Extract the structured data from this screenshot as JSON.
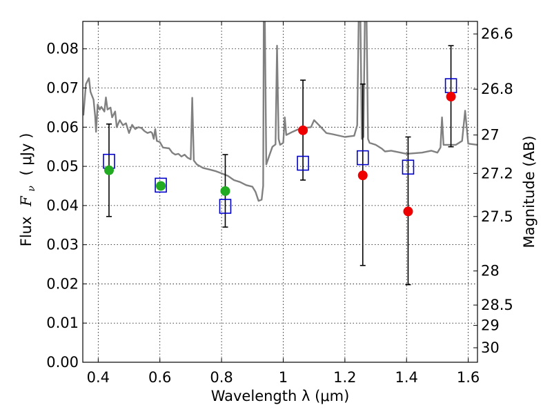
{
  "chart_data": {
    "type": "scatter",
    "title": "",
    "xlabel": "Wavelength  λ (μm)",
    "ylabel": "Flux  F_ν  ( μJy )",
    "ylabel_parts": {
      "prefix": "Flux",
      "symbol": "F",
      "subscript": "ν",
      "unit": "( μJy )"
    },
    "y2label": "Magnitude (AB)",
    "xlim": [
      0.35,
      1.63
    ],
    "ylim": [
      0.0,
      0.087
    ],
    "grid": true,
    "xticks": [
      {
        "value": 0.4,
        "label": "0.4"
      },
      {
        "value": 0.6,
        "label": "0.6"
      },
      {
        "value": 0.8,
        "label": "0.8"
      },
      {
        "value": 1.0,
        "label": "1"
      },
      {
        "value": 1.2,
        "label": "1.2"
      },
      {
        "value": 1.4,
        "label": "1.4"
      },
      {
        "value": 1.6,
        "label": "1.6"
      }
    ],
    "yticks": [
      {
        "value": 0.0,
        "label": "0.00"
      },
      {
        "value": 0.01,
        "label": "0.01"
      },
      {
        "value": 0.02,
        "label": "0.02"
      },
      {
        "value": 0.03,
        "label": "0.03"
      },
      {
        "value": 0.04,
        "label": "0.04"
      },
      {
        "value": 0.05,
        "label": "0.05"
      },
      {
        "value": 0.06,
        "label": "0.06"
      },
      {
        "value": 0.07,
        "label": "0.07"
      },
      {
        "value": 0.08,
        "label": "0.08"
      }
    ],
    "y2ticks": [
      {
        "flux": 0.0838,
        "label": "26.6"
      },
      {
        "flux": 0.0697,
        "label": "26.8"
      },
      {
        "flux": 0.058,
        "label": "27"
      },
      {
        "flux": 0.0482,
        "label": "27.2"
      },
      {
        "flux": 0.0372,
        "label": "27.5"
      },
      {
        "flux": 0.0233,
        "label": "28"
      },
      {
        "flux": 0.0146,
        "label": "28.5"
      },
      {
        "flux": 0.0094,
        "label": "29"
      },
      {
        "flux": 0.0037,
        "label": "30"
      }
    ],
    "series": [
      {
        "kind": "line",
        "color": "#808080",
        "points": [
          [
            0.352,
            0.063
          ],
          [
            0.36,
            0.071
          ],
          [
            0.37,
            0.0725
          ],
          [
            0.375,
            0.069
          ],
          [
            0.385,
            0.067
          ],
          [
            0.39,
            0.0628
          ],
          [
            0.393,
            0.0588
          ],
          [
            0.398,
            0.0658
          ],
          [
            0.405,
            0.0645
          ],
          [
            0.41,
            0.0652
          ],
          [
            0.42,
            0.064
          ],
          [
            0.425,
            0.0676
          ],
          [
            0.43,
            0.0645
          ],
          [
            0.44,
            0.065
          ],
          [
            0.445,
            0.0625
          ],
          [
            0.455,
            0.064
          ],
          [
            0.46,
            0.06
          ],
          [
            0.47,
            0.0618
          ],
          [
            0.48,
            0.0605
          ],
          [
            0.49,
            0.061
          ],
          [
            0.5,
            0.0585
          ],
          [
            0.51,
            0.0606
          ],
          [
            0.52,
            0.0595
          ],
          [
            0.53,
            0.06
          ],
          [
            0.54,
            0.0598
          ],
          [
            0.55,
            0.059
          ],
          [
            0.56,
            0.0585
          ],
          [
            0.57,
            0.0588
          ],
          [
            0.575,
            0.0585
          ],
          [
            0.58,
            0.057
          ],
          [
            0.585,
            0.0595
          ],
          [
            0.59,
            0.0565
          ],
          [
            0.6,
            0.0562
          ],
          [
            0.61,
            0.0548
          ],
          [
            0.63,
            0.0546
          ],
          [
            0.64,
            0.0535
          ],
          [
            0.65,
            0.053
          ],
          [
            0.66,
            0.0532
          ],
          [
            0.67,
            0.0525
          ],
          [
            0.68,
            0.053
          ],
          [
            0.69,
            0.0522
          ],
          [
            0.7,
            0.0518
          ],
          [
            0.705,
            0.0675
          ],
          [
            0.71,
            0.0515
          ],
          [
            0.72,
            0.0505
          ],
          [
            0.74,
            0.0496
          ],
          [
            0.76,
            0.0492
          ],
          [
            0.78,
            0.0488
          ],
          [
            0.8,
            0.0482
          ],
          [
            0.82,
            0.0476
          ],
          [
            0.84,
            0.0465
          ],
          [
            0.86,
            0.046
          ],
          [
            0.88,
            0.0452
          ],
          [
            0.9,
            0.0448
          ],
          [
            0.91,
            0.0435
          ],
          [
            0.92,
            0.0412
          ],
          [
            0.93,
            0.0415
          ],
          [
            0.935,
            0.045
          ],
          [
            0.937,
            0.09
          ],
          [
            0.94,
            0.09
          ],
          [
            0.945,
            0.0505
          ],
          [
            0.955,
            0.0528
          ],
          [
            0.965,
            0.055
          ],
          [
            0.975,
            0.0556
          ],
          [
            0.98,
            0.0808
          ],
          [
            0.985,
            0.057
          ],
          [
            0.99,
            0.0555
          ],
          [
            1.0,
            0.056
          ],
          [
            1.005,
            0.0625
          ],
          [
            1.01,
            0.058
          ],
          [
            1.03,
            0.0588
          ],
          [
            1.05,
            0.0595
          ],
          [
            1.07,
            0.0598
          ],
          [
            1.09,
            0.06
          ],
          [
            1.1,
            0.0618
          ],
          [
            1.12,
            0.0602
          ],
          [
            1.14,
            0.0585
          ],
          [
            1.16,
            0.0582
          ],
          [
            1.2,
            0.0575
          ],
          [
            1.23,
            0.0578
          ],
          [
            1.24,
            0.0605
          ],
          [
            1.245,
            0.09
          ],
          [
            1.25,
            0.09
          ],
          [
            1.255,
            0.057
          ],
          [
            1.26,
            0.0575
          ],
          [
            1.265,
            0.09
          ],
          [
            1.27,
            0.09
          ],
          [
            1.275,
            0.057
          ],
          [
            1.28,
            0.056
          ],
          [
            1.3,
            0.0555
          ],
          [
            1.32,
            0.0545
          ],
          [
            1.33,
            0.0538
          ],
          [
            1.35,
            0.054
          ],
          [
            1.4,
            0.0532
          ],
          [
            1.45,
            0.0535
          ],
          [
            1.48,
            0.054
          ],
          [
            1.5,
            0.0535
          ],
          [
            1.51,
            0.0548
          ],
          [
            1.515,
            0.0625
          ],
          [
            1.52,
            0.0555
          ],
          [
            1.54,
            0.0555
          ],
          [
            1.56,
            0.0555
          ],
          [
            1.58,
            0.0565
          ],
          [
            1.59,
            0.0642
          ],
          [
            1.6,
            0.0558
          ],
          [
            1.63,
            0.0555
          ]
        ]
      },
      {
        "kind": "squares",
        "color": "#0000cc",
        "points": [
          [
            0.435,
            0.0513
          ],
          [
            0.603,
            0.0452
          ],
          [
            0.812,
            0.0398
          ],
          [
            1.064,
            0.0508
          ],
          [
            1.258,
            0.0522
          ],
          [
            1.405,
            0.0498
          ],
          [
            1.544,
            0.0706
          ]
        ]
      },
      {
        "kind": "circles",
        "color": "#22aa22",
        "points": [
          {
            "x": 0.435,
            "y": 0.049,
            "err": [
              0.0372,
              0.0608
            ]
          },
          {
            "x": 0.603,
            "y": 0.045
          },
          {
            "x": 0.812,
            "y": 0.0437,
            "err": [
              0.0345,
              0.053
            ]
          }
        ]
      },
      {
        "kind": "circles",
        "color": "#ee0000",
        "points": [
          {
            "x": 1.064,
            "y": 0.0592,
            "err": [
              0.0465,
              0.072
            ]
          },
          {
            "x": 1.258,
            "y": 0.0477,
            "err": [
              0.0247,
              0.071
            ]
          },
          {
            "x": 1.405,
            "y": 0.0385,
            "err": [
              0.0198,
              0.0575
            ]
          },
          {
            "x": 1.544,
            "y": 0.0678,
            "err": [
              0.055,
              0.0808
            ]
          }
        ]
      }
    ]
  }
}
